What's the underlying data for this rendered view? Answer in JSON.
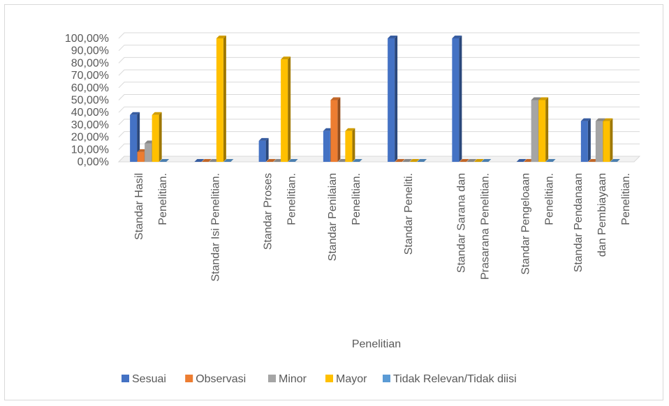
{
  "chart_data": {
    "type": "bar",
    "title": "",
    "xlabel": "Penelitian",
    "ylabel": "",
    "ylim": [
      0,
      1
    ],
    "y_ticks": [
      "0,00%",
      "10,00%",
      "20,00%",
      "30,00%",
      "40,00%",
      "50,00%",
      "60,00%",
      "70,00%",
      "80,00%",
      "90,00%",
      "100,00%"
    ],
    "categories": [
      [
        "Standar Hasil",
        "Penelitian."
      ],
      [
        "Standar Isi Penelitian."
      ],
      [
        "Standar Proses",
        "Penelitian."
      ],
      [
        "Standar Penilaian",
        "Penelitian."
      ],
      [
        "Standar Peneliti."
      ],
      [
        "Standar Sarana dan",
        "Prasarana Penelitian."
      ],
      [
        "Standar Pengeloaan",
        "Penelitian."
      ],
      [
        "Standar Pendanaan",
        "dan Pembiayaan",
        "Penelitian."
      ]
    ],
    "series": [
      {
        "name": "Sesuai",
        "color": "#4472c4",
        "values": [
          0.38,
          0,
          0.17,
          0.25,
          1.0,
          1.0,
          0,
          0.33
        ]
      },
      {
        "name": "Observasi",
        "color": "#ed7d31",
        "values": [
          0.08,
          0,
          0,
          0.5,
          0,
          0,
          0,
          0
        ]
      },
      {
        "name": "Minor",
        "color": "#a5a5a5",
        "values": [
          0.15,
          0,
          0,
          0,
          0,
          0,
          0.5,
          0.33
        ]
      },
      {
        "name": "Mayor",
        "color": "#ffc000",
        "values": [
          0.38,
          1.0,
          0.83,
          0.25,
          0,
          0,
          0.5,
          0.33
        ]
      },
      {
        "name": "Tidak Relevan/Tidak diisi",
        "color": "#5b9bd5",
        "values": [
          0,
          0,
          0,
          0,
          0,
          0,
          0,
          0
        ]
      }
    ],
    "grid": true,
    "legend_position": "bottom",
    "style": "3d-clustered-column"
  }
}
